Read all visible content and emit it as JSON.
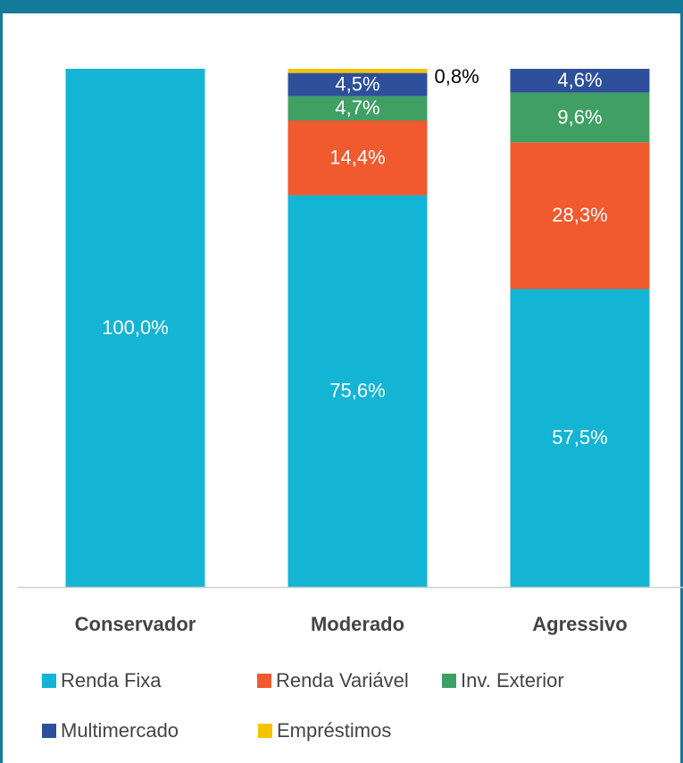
{
  "chart_data": {
    "type": "stacked_bar",
    "categories": [
      "Conservador",
      "Moderado",
      "Agressivo"
    ],
    "ylim": [
      0,
      100
    ],
    "series": [
      {
        "name": "Renda Fixa",
        "color": "#13b4d4",
        "values": [
          100,
          75.6,
          57.5
        ],
        "value_labels": [
          "100,0%",
          "75,6%",
          "57,5%"
        ]
      },
      {
        "name": "Renda Variável",
        "color": "#f05a2e",
        "values": [
          0,
          14.4,
          28.3
        ],
        "value_labels": [
          null,
          "14,4%",
          "28,3%"
        ]
      },
      {
        "name": "Inv. Exterior",
        "color": "#40a064",
        "values": [
          0,
          4.7,
          9.6
        ],
        "value_labels": [
          null,
          "4,7%",
          "9,6%"
        ]
      },
      {
        "name": "Multimercado",
        "color": "#2e509b",
        "values": [
          0,
          4.5,
          4.6
        ],
        "value_labels": [
          null,
          "4,5%",
          "4,6%"
        ]
      },
      {
        "name": "Empréstimos",
        "color": "#f7c300",
        "values": [
          0,
          0.8,
          0
        ],
        "value_labels": [
          null,
          "0,8%",
          null
        ]
      }
    ],
    "legend": "bottom"
  }
}
